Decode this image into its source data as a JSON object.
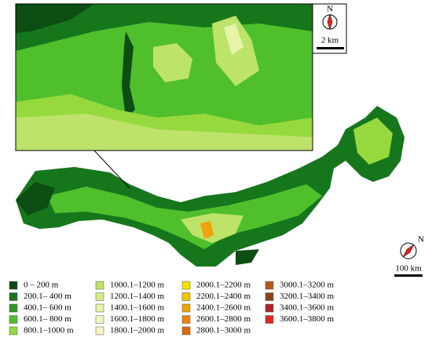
{
  "inset": {
    "north": "N",
    "scale": "2 km"
  },
  "main_map": {
    "north": "N",
    "scale": "100 km"
  },
  "legend": {
    "items": [
      {
        "label": "0  –  200 m",
        "color": "#0b4d12"
      },
      {
        "label": "200.1–  400 m",
        "color": "#16761c"
      },
      {
        "label": "400.1–  600 m",
        "color": "#2c9a22"
      },
      {
        "label": "600.1–  800 m",
        "color": "#4fbf2c"
      },
      {
        "label": "800.1–1000 m",
        "color": "#96d93e"
      },
      {
        "label": "1000.1–1200 m",
        "color": "#bde36a"
      },
      {
        "label": "1200.1–1400 m",
        "color": "#d3ec8a"
      },
      {
        "label": "1400.1–1600 m",
        "color": "#e6f3a8"
      },
      {
        "label": "1600.1–1800 m",
        "color": "#f2f4bc"
      },
      {
        "label": "1800.1–2000 m",
        "color": "#f7f1c8"
      },
      {
        "label": "2000.1–2200 m",
        "color": "#f2e200"
      },
      {
        "label": "2200.1–2400 m",
        "color": "#f2c400"
      },
      {
        "label": "2400.1–2600 m",
        "color": "#f0a30a"
      },
      {
        "label": "2600.1–2800 m",
        "color": "#e8850f"
      },
      {
        "label": "2800.1–3000 m",
        "color": "#d86a10"
      },
      {
        "label": "3000.1–3200 m",
        "color": "#b55a1a"
      },
      {
        "label": "3200.1–3400 m",
        "color": "#8c4214"
      },
      {
        "label": "3400.1–3600 m",
        "color": "#b32222"
      },
      {
        "label": "3600.1–3800 m",
        "color": "#e3261f"
      }
    ]
  }
}
